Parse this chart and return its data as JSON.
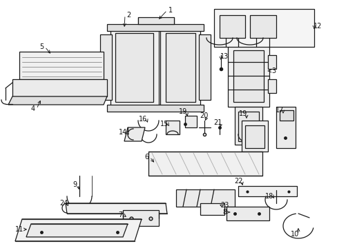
{
  "background_color": "#ffffff",
  "fig_width": 4.89,
  "fig_height": 3.6,
  "dpi": 100,
  "line_color": "#1a1a1a",
  "label_color": "#111111",
  "label_fontsize": 7.0,
  "lw_main": 0.9,
  "lw_thin": 0.6
}
